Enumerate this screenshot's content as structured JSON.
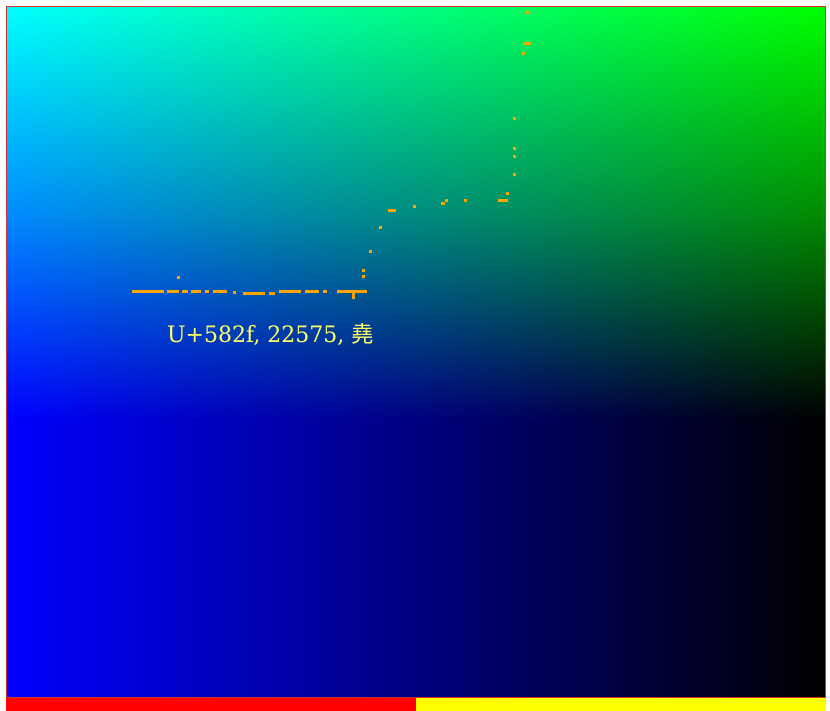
{
  "label": {
    "text": "U+582f, 22575, 堯"
  },
  "progress": {
    "fraction": 0.5
  },
  "colors": {
    "label_text": "#ffff66",
    "trace": "#ffa500",
    "progress_fill": "#ff0000",
    "progress_track": "#ffff00",
    "frame_border": "#d03030",
    "gradient_top_left": "#00ffff",
    "gradient_top_right": "#00ff00",
    "gradient_bottom_left": "#0000ff",
    "gradient_bottom_right": "#000000"
  }
}
